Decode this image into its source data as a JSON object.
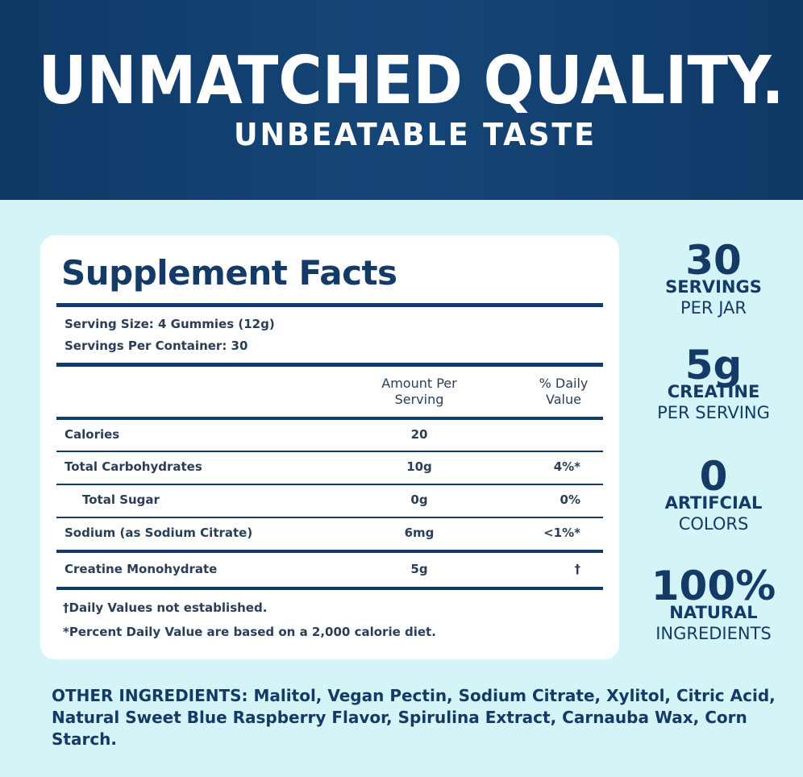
{
  "header": {
    "title": "UNMATCHED QUALITY.",
    "subtitle": "UNBEATABLE TASTE"
  },
  "facts": {
    "title": "Supplement Facts",
    "serving_size": "Serving Size: 4 Gummies (12g)",
    "servings_per_container": "Servings Per Container: 30",
    "columns": [
      "Amount Per Serving",
      "% Daily Value"
    ],
    "rows": [
      {
        "name": "Calories",
        "amount": "20"
      },
      {
        "name": "Total Carbohydrates",
        "amount": "10g",
        "daily_value": "4%*"
      },
      {
        "name": "Total Sugar",
        "amount": "0g",
        "daily_value": "0%",
        "indent": true
      },
      {
        "name": "Sodium (as Sodium Citrate)",
        "amount": "6mg",
        "daily_value": "<1%*"
      },
      {
        "name": "Creatine Monohydrate",
        "amount": "5g",
        "daily_value": "†"
      }
    ],
    "footnotes": [
      "†Daily Values not established.",
      "*Percent Daily Value are based on a 2,000 calorie diet."
    ]
  },
  "stats": [
    {
      "value": "30",
      "label": "SERVINGS",
      "sub": "PER JAR"
    },
    {
      "value": "5g",
      "label": "CREATINE",
      "sub": "PER SERVING"
    },
    {
      "value": "0",
      "label": "ARTIFCIAL",
      "sub": "COLORS"
    },
    {
      "value": "100%",
      "label": "NATURAL",
      "sub": "INGREDIENTS"
    }
  ],
  "other_ingredients": {
    "label": "OTHER INGREDIENTS:",
    "text": "Malitol, Vegan Pectin, Sodium Citrate, Xylitol, Citric Acid, Natural Sweet Blue Raspberry Flavor, Spirulina Extract, Carnauba Wax, Corn Starch."
  }
}
